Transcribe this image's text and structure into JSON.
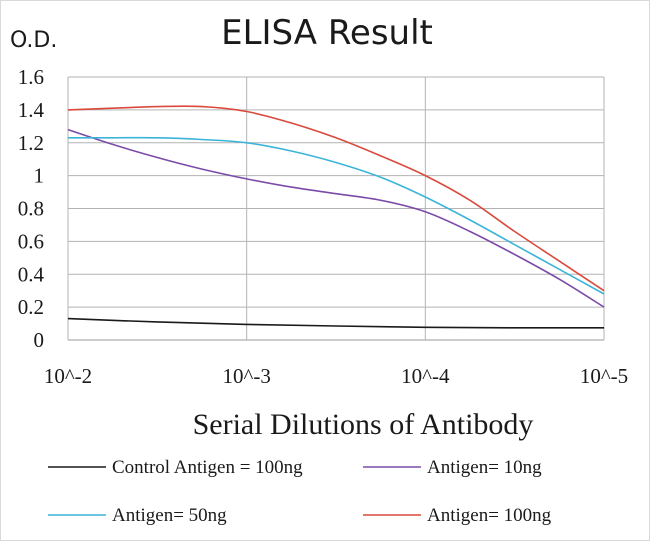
{
  "chart_data": {
    "type": "line",
    "title": "ELISA Result",
    "ylabel": "O.D.",
    "xlabel": "Serial Dilutions  of Antibody",
    "categories": [
      "10^-2",
      "10^-3",
      "10^-4",
      "10^-5"
    ],
    "yticks": [
      "0",
      "0.2",
      "0.4",
      "0.6",
      "0.8",
      "1",
      "1.2",
      "1.4",
      "1.6"
    ],
    "ylim": [
      0,
      1.6
    ],
    "grid": true,
    "legend_position": "bottom",
    "series": [
      {
        "name": "Control Antigen = 100ng",
        "color": "#1a1a1a",
        "x": [
          0,
          0.5,
          1,
          1.5,
          2,
          2.5,
          3
        ],
        "values": [
          0.13,
          0.11,
          0.095,
          0.085,
          0.077,
          0.074,
          0.074
        ]
      },
      {
        "name": "Antigen= 10ng",
        "color": "#7b4ba8",
        "x": [
          0,
          0.25,
          0.5,
          0.75,
          1,
          1.25,
          1.5,
          1.75,
          2,
          2.25,
          2.5,
          2.75,
          3
        ],
        "values": [
          1.28,
          1.19,
          1.11,
          1.04,
          0.98,
          0.93,
          0.89,
          0.85,
          0.78,
          0.66,
          0.52,
          0.37,
          0.2
        ]
      },
      {
        "name": "Antigen= 50ng",
        "color": "#3cb4d9",
        "x": [
          0,
          0.25,
          0.5,
          0.75,
          1,
          1.25,
          1.5,
          1.75,
          2,
          2.25,
          2.5,
          2.75,
          3
        ],
        "values": [
          1.23,
          1.23,
          1.23,
          1.22,
          1.2,
          1.15,
          1.08,
          0.99,
          0.87,
          0.73,
          0.58,
          0.43,
          0.28
        ]
      },
      {
        "name": "Antigen= 100ng",
        "color": "#d94a3c",
        "x": [
          0,
          0.25,
          0.5,
          0.75,
          1,
          1.25,
          1.5,
          1.75,
          2,
          2.25,
          2.5,
          2.75,
          3
        ],
        "values": [
          1.4,
          1.41,
          1.42,
          1.42,
          1.39,
          1.32,
          1.23,
          1.12,
          1.0,
          0.85,
          0.66,
          0.48,
          0.3
        ]
      }
    ]
  }
}
